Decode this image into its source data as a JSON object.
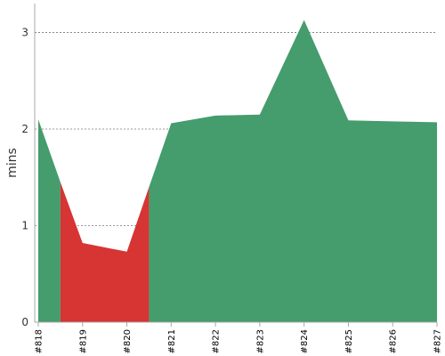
{
  "chart_data": {
    "type": "area",
    "ylabel": "mins",
    "xlabel": "",
    "ylim": [
      0,
      3.3
    ],
    "grid": "horizontal-dashed",
    "categories": [
      "#818",
      "#819",
      "#820",
      "#821",
      "#822",
      "#823",
      "#824",
      "#825",
      "#826",
      "#827"
    ],
    "yticks": [
      0,
      1,
      2,
      3
    ],
    "colors": {
      "success": "#459c6c",
      "failure": "#d73434",
      "axis": "#aaaaaa",
      "grid": "#777777"
    },
    "points": [
      {
        "x": 0.0,
        "y": 2.1
      },
      {
        "x": 0.5,
        "y": 1.45
      },
      {
        "x": 1.0,
        "y": 0.82
      },
      {
        "x": 2.0,
        "y": 0.73
      },
      {
        "x": 2.5,
        "y": 1.4
      },
      {
        "x": 3.0,
        "y": 2.06
      },
      {
        "x": 4.0,
        "y": 2.14
      },
      {
        "x": 5.0,
        "y": 2.15
      },
      {
        "x": 6.0,
        "y": 3.13
      },
      {
        "x": 7.0,
        "y": 2.09
      },
      {
        "x": 8.0,
        "y": 2.08
      },
      {
        "x": 9.0,
        "y": 2.07
      }
    ],
    "segments": [
      {
        "status": "success",
        "x_start": 0.0,
        "x_end": 0.5
      },
      {
        "status": "failure",
        "x_start": 0.5,
        "x_end": 2.5
      },
      {
        "status": "success",
        "x_start": 2.5,
        "x_end": 9.0
      }
    ]
  }
}
